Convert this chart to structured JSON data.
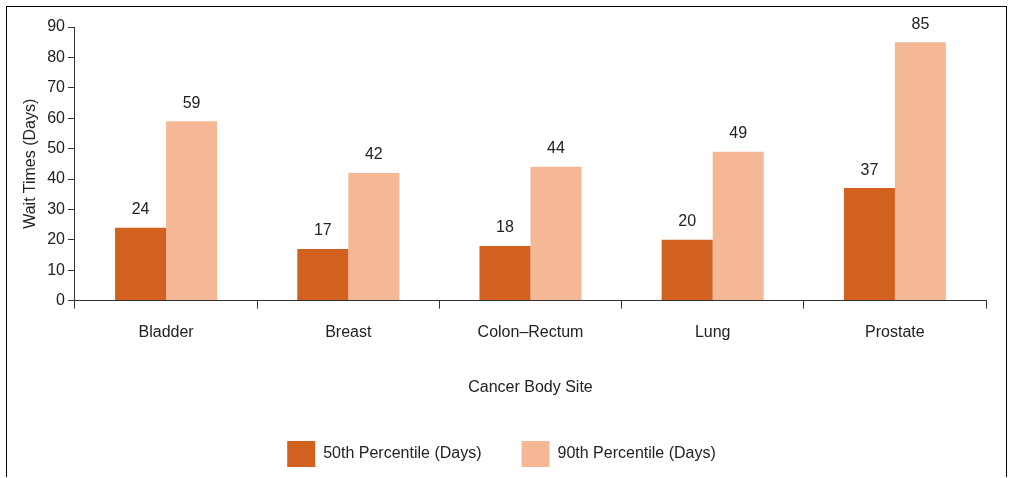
{
  "chart_data": {
    "type": "bar",
    "xlabel": "Cancer Body Site",
    "ylabel": "Wait Times (Days)",
    "categories": [
      "Bladder",
      "Breast",
      "Colon–Rectum",
      "Lung",
      "Prostate"
    ],
    "series": [
      {
        "name": "50th Percentile (Days)",
        "color": "#d2601f",
        "values": [
          24,
          17,
          18,
          20,
          37
        ]
      },
      {
        "name": "90th Percentile (Days)",
        "color": "#f4b896",
        "values": [
          59,
          42,
          44,
          49,
          85
        ]
      }
    ],
    "ylim": [
      0,
      90
    ],
    "yticks": [
      0,
      10,
      20,
      30,
      40,
      50,
      60,
      70,
      80,
      90
    ],
    "grid": false,
    "legend": "bottom",
    "data_labels": true
  }
}
